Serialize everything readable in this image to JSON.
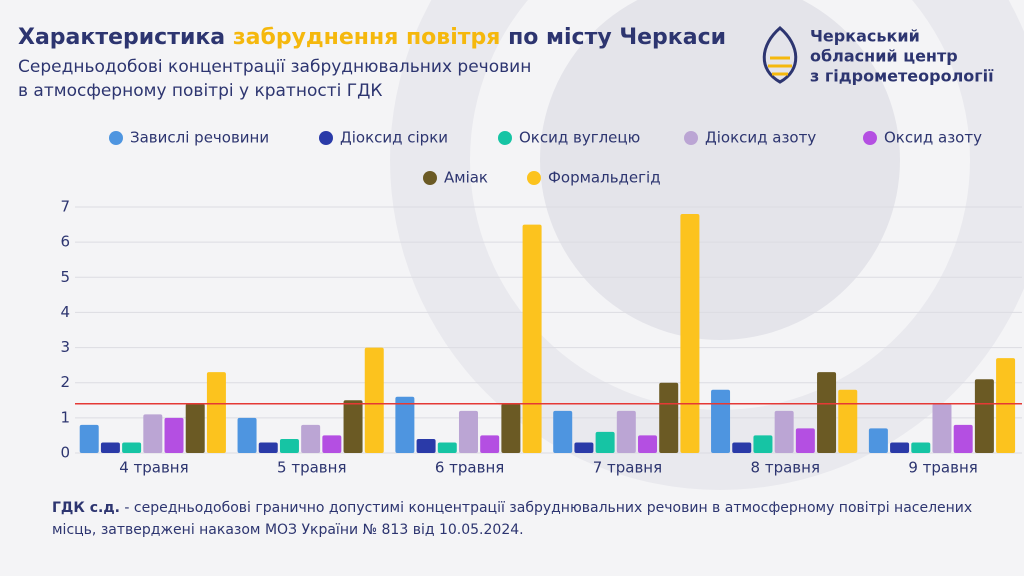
{
  "header": {
    "title_start": "Характеристика",
    "title_highlight": "забруднення повітря",
    "title_end": "по місту Черкаси",
    "subtitle_lines": [
      "Середньодобові концентрації забруднювальних речовин",
      "в атмосферному повітрі у кратності ГДК"
    ]
  },
  "logo": {
    "lines": [
      "Черкаський",
      "обласний центр",
      "з гідрометеорології"
    ]
  },
  "chart_data": {
    "type": "bar",
    "grid": true,
    "categories": [
      "4 травня",
      "5 травня",
      "6 травня",
      "7 травня",
      "8 травня",
      "9 травня"
    ],
    "series": [
      {
        "name": "Завислі речовини",
        "color": "#4e95e0",
        "values": [
          0.8,
          1.0,
          1.6,
          1.2,
          1.8,
          0.7
        ]
      },
      {
        "name": "Діоксид сірки",
        "color": "#2a3aa8",
        "values": [
          0.3,
          0.3,
          0.4,
          0.3,
          0.3,
          0.3
        ]
      },
      {
        "name": "Оксид вуглецю",
        "color": "#16c4a4",
        "values": [
          0.3,
          0.4,
          0.3,
          0.6,
          0.5,
          0.3
        ]
      },
      {
        "name": "Діоксид азоту",
        "color": "#bba5d4",
        "values": [
          1.1,
          0.8,
          1.2,
          1.2,
          1.2,
          1.4
        ]
      },
      {
        "name": "Оксид азоту",
        "color": "#b44fe2",
        "values": [
          1.0,
          0.5,
          0.5,
          0.5,
          0.7,
          0.8
        ]
      },
      {
        "name": "Аміак",
        "color": "#6b5a24",
        "values": [
          1.4,
          1.5,
          1.4,
          2.0,
          2.3,
          2.1
        ]
      },
      {
        "name": "Формальдегід",
        "color": "#fcc31e",
        "values": [
          2.3,
          3.0,
          6.5,
          6.8,
          1.8,
          2.7
        ]
      }
    ],
    "ylim": [
      0,
      7
    ],
    "yticks": [
      0,
      1,
      2,
      3,
      4,
      5,
      6,
      7
    ],
    "reference_line": {
      "value": 1.4,
      "color": "#e53935"
    }
  },
  "footnote": {
    "term": "ГДК с.д.",
    "text": " - середньодобові гранично допустимі концентрації забруднювальних речовин в атмосферному повітрі населених місць, затверджені наказом МОЗ України № 813 від 10.05.2024."
  }
}
